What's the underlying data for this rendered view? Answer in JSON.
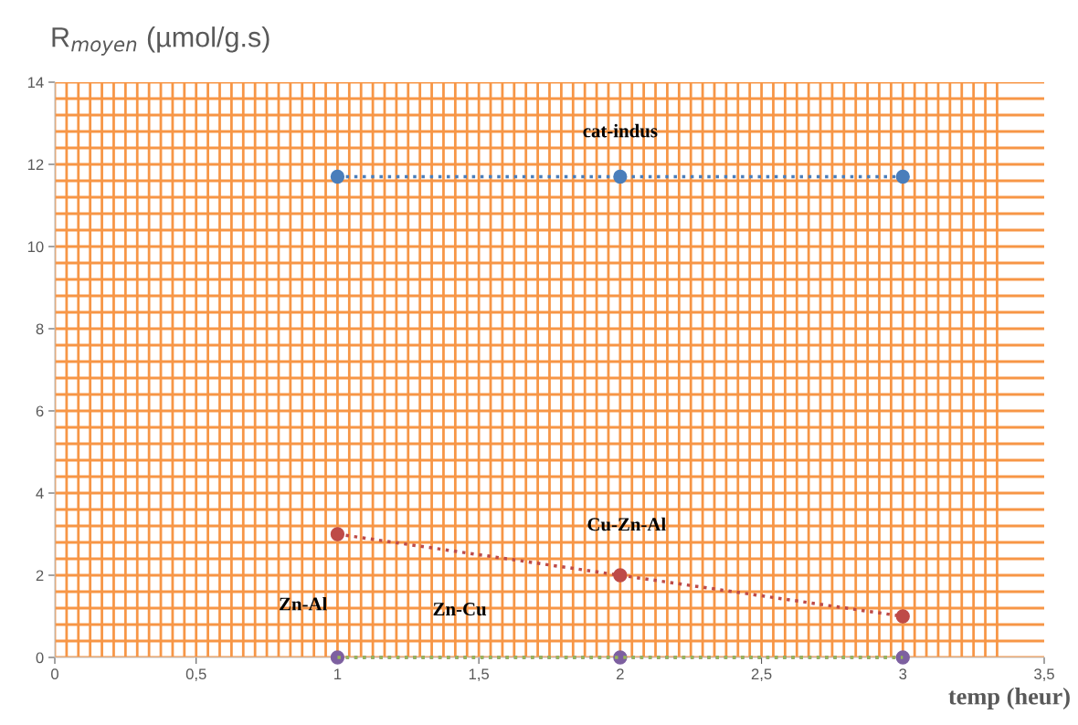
{
  "chart_data": {
    "type": "line",
    "ylabel": "R$_{moyen}$ (µmol/g.s)",
    "xlabel": "temp (heur)",
    "x": [
      1,
      2,
      3
    ],
    "series": [
      {
        "name": "cat-indus",
        "color": "#4a7ebb",
        "values": [
          11.7,
          11.7,
          11.7
        ],
        "marker": "circle"
      },
      {
        "name": "Cu-Zn-Al",
        "color": "#be4b48",
        "values": [
          3,
          2,
          1
        ],
        "marker": "circle"
      },
      {
        "name": "Zn-Al",
        "color": "#7d60a0",
        "values": [
          0,
          0,
          0
        ],
        "marker": "circle"
      },
      {
        "name": "Zn-Cu",
        "color": "#98b954",
        "values": [
          0,
          0,
          0
        ],
        "marker": "none"
      }
    ],
    "line_style": "dotted",
    "grid": true,
    "legend": false,
    "xlim": [
      0,
      3.5
    ],
    "ylim": [
      0,
      14
    ],
    "xticks": [
      0,
      {
        "value": 0.5,
        "label": "0,5"
      },
      1,
      {
        "value": 1.5,
        "label": "1,5"
      },
      2,
      {
        "value": 2.5,
        "label": "2,5"
      },
      3,
      {
        "value": 3.5,
        "label": "3,5"
      }
    ],
    "yticks": [
      0,
      2,
      4,
      6,
      8,
      10,
      12,
      14
    ]
  }
}
